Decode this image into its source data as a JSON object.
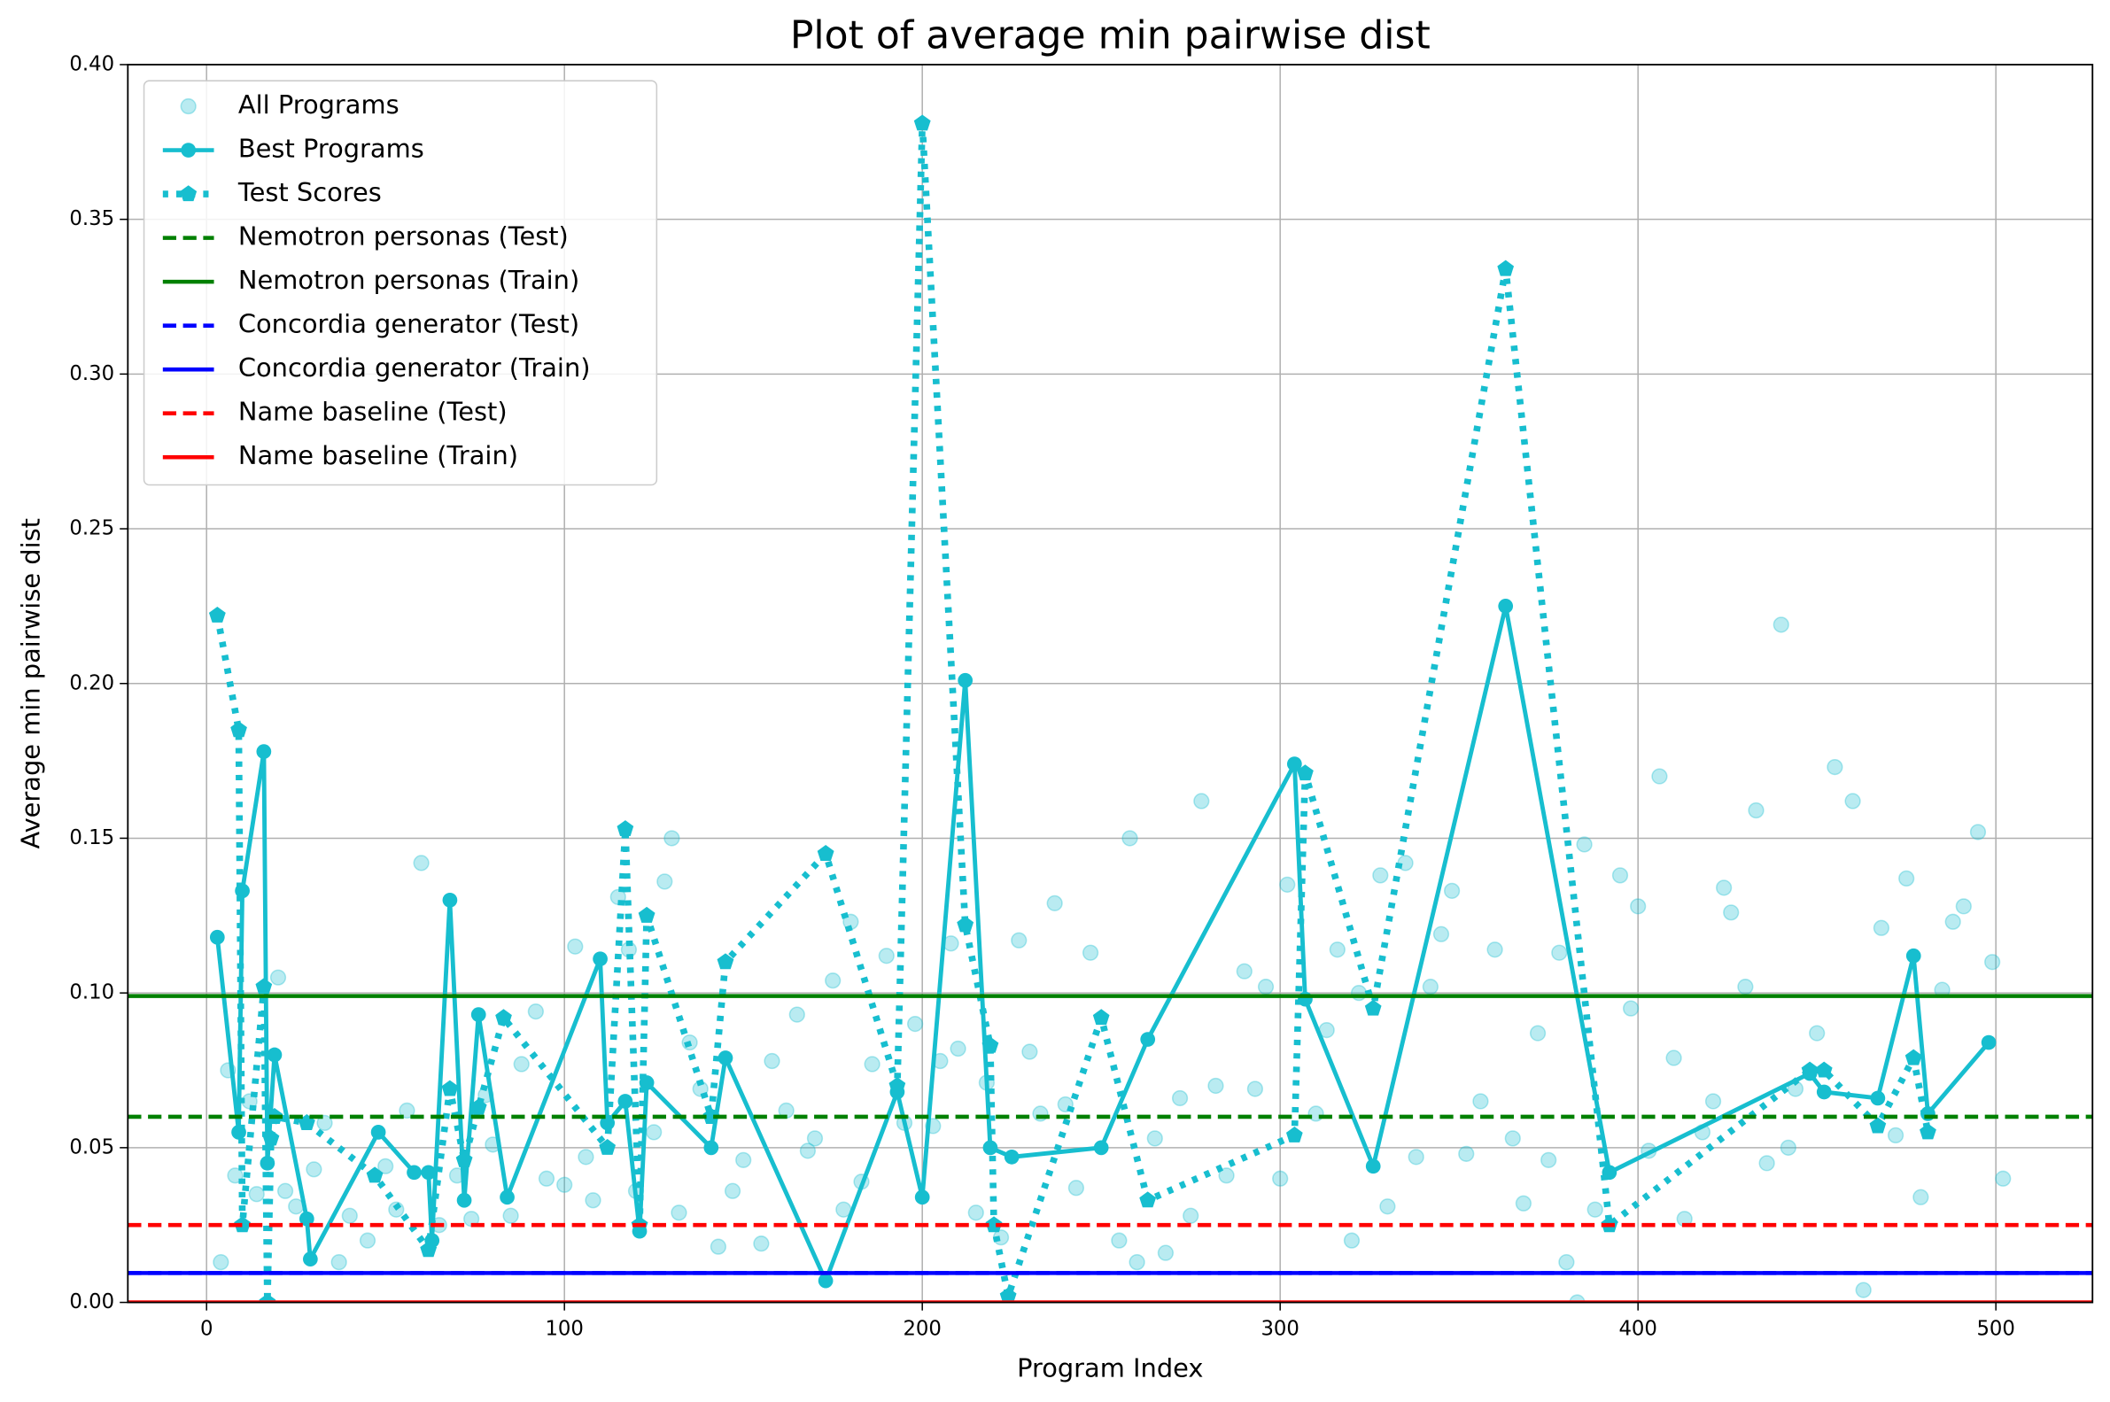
{
  "chart_data": {
    "type": "line",
    "title": "Plot of average min pairwise dist",
    "x_label": "Program Index",
    "y_label": "Average min pairwise dist",
    "xlim": [
      -22,
      527
    ],
    "ylim": [
      0,
      0.4
    ],
    "xticks": [
      0,
      100,
      200,
      300,
      400,
      500
    ],
    "yticks": [
      {
        "value": 0,
        "label": "0.00"
      },
      {
        "value": 0.05,
        "label": "0.05"
      },
      {
        "value": 0.1,
        "label": "0.10"
      },
      {
        "value": 0.15,
        "label": "0.15"
      },
      {
        "value": 0.2,
        "label": "0.20"
      },
      {
        "value": 0.25,
        "label": "0.25"
      },
      {
        "value": 0.3,
        "label": "0.30"
      },
      {
        "value": 0.35,
        "label": "0.35"
      },
      {
        "value": 0.4,
        "label": "0.40"
      }
    ],
    "grid": true,
    "legend": "upper left",
    "series": [
      {
        "name": "All Programs",
        "type": "scatter",
        "color": "#17becf",
        "x": [
          4,
          6,
          8,
          12,
          14,
          20,
          22,
          25,
          30,
          33,
          37,
          40,
          45,
          50,
          53,
          56,
          60,
          65,
          70,
          74,
          78,
          80,
          85,
          88,
          92,
          95,
          100,
          103,
          106,
          108,
          115,
          118,
          120,
          125,
          128,
          130,
          132,
          135,
          138,
          143,
          147,
          150,
          155,
          158,
          162,
          165,
          168,
          170,
          175,
          178,
          180,
          183,
          186,
          190,
          195,
          198,
          203,
          205,
          208,
          210,
          215,
          218,
          222,
          227,
          230,
          233,
          237,
          240,
          243,
          247,
          255,
          258,
          260,
          265,
          268,
          272,
          275,
          278,
          282,
          285,
          290,
          293,
          296,
          300,
          302,
          310,
          313,
          316,
          320,
          322,
          328,
          330,
          335,
          338,
          342,
          345,
          348,
          352,
          356,
          360,
          365,
          368,
          372,
          375,
          378,
          380,
          383,
          385,
          388,
          395,
          398,
          400,
          403,
          406,
          410,
          413,
          418,
          421,
          424,
          426,
          430,
          433,
          436,
          440,
          442,
          444,
          450,
          455,
          460,
          463,
          468,
          472,
          475,
          479,
          485,
          488,
          491,
          495,
          499,
          502
        ],
        "values": [
          0.013,
          0.075,
          0.041,
          0.065,
          0.035,
          0.105,
          0.036,
          0.031,
          0.043,
          0.058,
          0.013,
          0.028,
          0.02,
          0.044,
          0.03,
          0.062,
          0.142,
          0.025,
          0.041,
          0.027,
          0.067,
          0.051,
          0.028,
          0.077,
          0.094,
          0.04,
          0.038,
          0.115,
          0.047,
          0.033,
          0.131,
          0.114,
          0.036,
          0.055,
          0.136,
          0.15,
          0.029,
          0.084,
          0.069,
          0.018,
          0.036,
          0.046,
          0.019,
          0.078,
          0.062,
          0.093,
          0.049,
          0.053,
          0.104,
          0.03,
          0.123,
          0.039,
          0.077,
          0.112,
          0.058,
          0.09,
          0.057,
          0.078,
          0.116,
          0.082,
          0.029,
          0.071,
          0.021,
          0.117,
          0.081,
          0.061,
          0.129,
          0.064,
          0.037,
          0.113,
          0.02,
          0.15,
          0.013,
          0.053,
          0.016,
          0.066,
          0.028,
          0.162,
          0.07,
          0.041,
          0.107,
          0.069,
          0.102,
          0.04,
          0.135,
          0.061,
          0.088,
          0.114,
          0.02,
          0.1,
          0.138,
          0.031,
          0.142,
          0.047,
          0.102,
          0.119,
          0.133,
          0.048,
          0.065,
          0.114,
          0.053,
          0.032,
          0.087,
          0.046,
          0.113,
          0.013,
          0.0,
          0.148,
          0.03,
          0.138,
          0.095,
          0.128,
          0.049,
          0.17,
          0.079,
          0.027,
          0.055,
          0.065,
          0.134,
          0.126,
          0.102,
          0.159,
          0.045,
          0.219,
          0.05,
          0.069,
          0.087,
          0.173,
          0.162,
          0.004,
          0.121,
          0.054,
          0.137,
          0.034,
          0.101,
          0.123,
          0.128,
          0.152,
          0.11,
          0.04
        ]
      },
      {
        "name": "Best Programs",
        "type": "line",
        "marker": "circle",
        "linestyle": "solid",
        "color": "#17becf",
        "x": [
          3,
          9,
          10,
          16,
          17,
          19,
          28,
          29,
          48,
          58,
          62,
          63,
          68,
          72,
          76,
          84,
          110,
          112,
          117,
          121,
          123,
          141,
          145,
          173,
          193,
          200,
          212,
          219,
          225,
          250,
          263,
          304,
          307,
          326,
          363,
          392,
          448,
          452,
          467,
          477,
          481,
          498
        ],
        "values": [
          0.118,
          0.055,
          0.133,
          0.178,
          0.045,
          0.08,
          0.027,
          0.014,
          0.055,
          0.042,
          0.042,
          0.02,
          0.13,
          0.033,
          0.093,
          0.034,
          0.111,
          0.058,
          0.065,
          0.023,
          0.071,
          0.05,
          0.079,
          0.007,
          0.068,
          0.034,
          0.201,
          0.05,
          0.047,
          0.05,
          0.085,
          0.174,
          0.098,
          0.044,
          0.225,
          0.042,
          0.074,
          0.068,
          0.066,
          0.112,
          0.061,
          0.084
        ]
      },
      {
        "name": "Test Scores",
        "type": "line",
        "marker": "pentagon",
        "linestyle": "dotted",
        "color": "#17becf",
        "x": [
          3,
          9,
          10,
          16,
          17,
          18,
          19,
          28,
          47,
          62,
          68,
          72,
          76,
          83,
          112,
          117,
          121,
          123,
          141,
          145,
          173,
          193,
          200,
          212,
          219,
          220,
          224,
          250,
          263,
          304,
          307,
          326,
          363,
          392,
          448,
          452,
          467,
          477,
          481
        ],
        "values": [
          0.222,
          0.185,
          0.025,
          0.102,
          0.0,
          0.053,
          0.06,
          0.058,
          0.041,
          0.017,
          0.069,
          0.046,
          0.063,
          0.092,
          0.05,
          0.153,
          0.025,
          0.125,
          0.06,
          0.11,
          0.145,
          0.07,
          0.381,
          0.122,
          0.083,
          0.025,
          0.002,
          0.092,
          0.033,
          0.054,
          0.171,
          0.095,
          0.334,
          0.025,
          0.075,
          0.075,
          0.057,
          0.079,
          0.055
        ]
      },
      {
        "name": "Nemotron personas (Test)",
        "type": "hline",
        "linestyle": "dashed",
        "color": "#008000",
        "y": 0.06
      },
      {
        "name": "Nemotron personas (Train)",
        "type": "hline",
        "linestyle": "solid",
        "color": "#008000",
        "y": 0.099
      },
      {
        "name": "Concordia generator (Test)",
        "type": "hline",
        "linestyle": "dashed",
        "color": "#0000ff",
        "y": 0.0095
      },
      {
        "name": "Concordia generator (Train)",
        "type": "hline",
        "linestyle": "solid",
        "color": "#0000ff",
        "y": 0.0095
      },
      {
        "name": "Name baseline (Test)",
        "type": "hline",
        "linestyle": "dashed",
        "color": "#ff0000",
        "y": 0.025
      },
      {
        "name": "Name baseline (Train)",
        "type": "hline",
        "linestyle": "solid",
        "color": "#ff0000",
        "y": 0.0
      }
    ]
  }
}
